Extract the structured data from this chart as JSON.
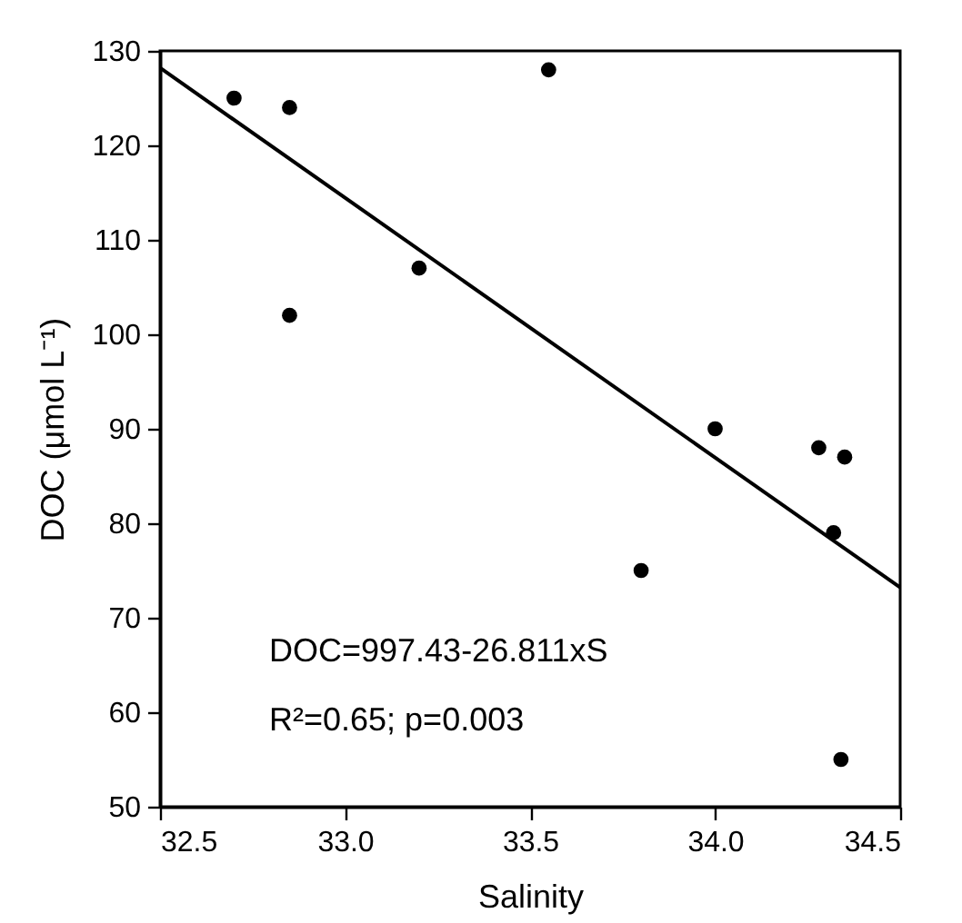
{
  "chart_data": {
    "type": "scatter",
    "xlabel": "Salinity",
    "ylabel": "DOC (μmol L⁻¹)",
    "xlim": [
      32.5,
      34.5
    ],
    "xticks": [
      {
        "value": 32.5,
        "label": "32.5"
      },
      {
        "value": 33,
        "label": "33.0"
      },
      {
        "value": 33.5,
        "label": "33.5"
      },
      {
        "value": 34,
        "label": "34.0"
      },
      {
        "value": 34.5,
        "label": "34.5"
      }
    ],
    "ylim": [
      50,
      130
    ],
    "yticks": [
      50,
      60,
      70,
      80,
      90,
      100,
      110,
      120,
      130
    ],
    "grid": false,
    "series": [
      {
        "marker": "circle",
        "color": "#000000",
        "x": [
          32.7,
          32.85,
          32.85,
          33.2,
          33.55,
          34.0,
          34.28,
          34.35,
          34.32,
          33.8,
          34.34
        ],
        "values": [
          125,
          124,
          102,
          107,
          128,
          90,
          88,
          87,
          79,
          75,
          55
        ]
      },
      {
        "type": "line",
        "color": "#000000",
        "x": [
          32.5,
          34.5
        ],
        "values": [
          128.2,
          73.2
        ],
        "line_style": "solid"
      }
    ],
    "annotations": [
      "DOC=997.43-26.811xS",
      "R²=0.65; p=0.003"
    ]
  }
}
